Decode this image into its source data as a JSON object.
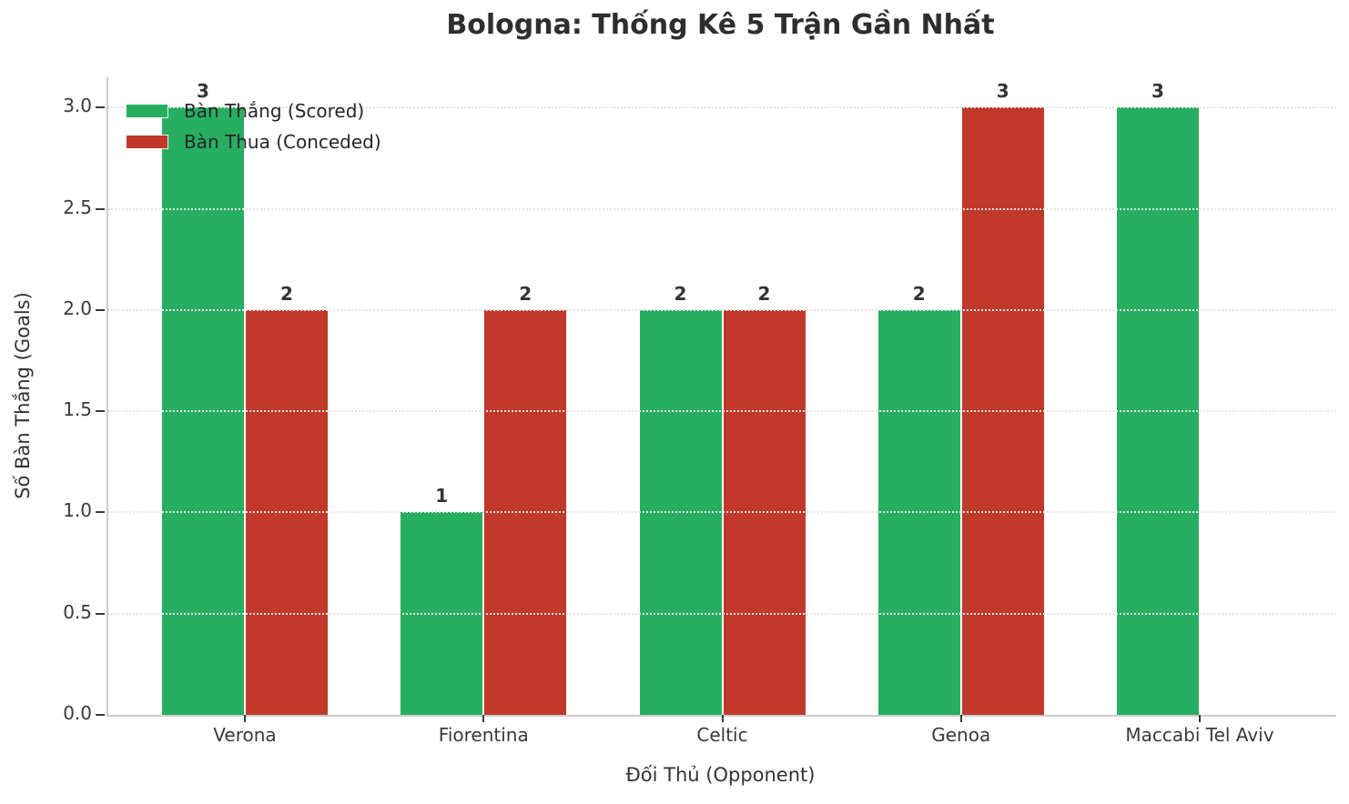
{
  "chart_data": {
    "type": "bar",
    "title": "Bologna: Thống Kê 5 Trận Gần Nhất",
    "xlabel": "Đối Thủ (Opponent)",
    "ylabel": "Số Bàn Thắng (Goals)",
    "categories": [
      "Verona",
      "Fiorentina",
      "Celtic",
      "Genoa",
      "Maccabi Tel Aviv"
    ],
    "series": [
      {
        "name": "Bàn Thắng (Scored)",
        "values": [
          3,
          1,
          2,
          2,
          3
        ],
        "color": "#27ae60"
      },
      {
        "name": "Bàn Thua (Conceded)",
        "values": [
          2,
          2,
          2,
          3,
          0
        ],
        "color": "#c0392b"
      }
    ],
    "yticks": [
      0.0,
      0.5,
      1.0,
      1.5,
      2.0,
      2.5,
      3.0
    ],
    "ytick_labels": [
      "0.0",
      "0.5",
      "1.0",
      "1.5",
      "2.0",
      "2.5",
      "3.0"
    ],
    "ylim": [
      0,
      3.15
    ],
    "grid": "horizontal-dotted",
    "legend_position": "upper-left",
    "bar_value_labels": true,
    "colors": {
      "scored": "#27ae60",
      "conceded": "#c0392b",
      "title_text": "#2e2e2e",
      "tick_text": "#3a3a3a",
      "spine": "#cccccc",
      "grid": "#e4e4e4"
    }
  }
}
